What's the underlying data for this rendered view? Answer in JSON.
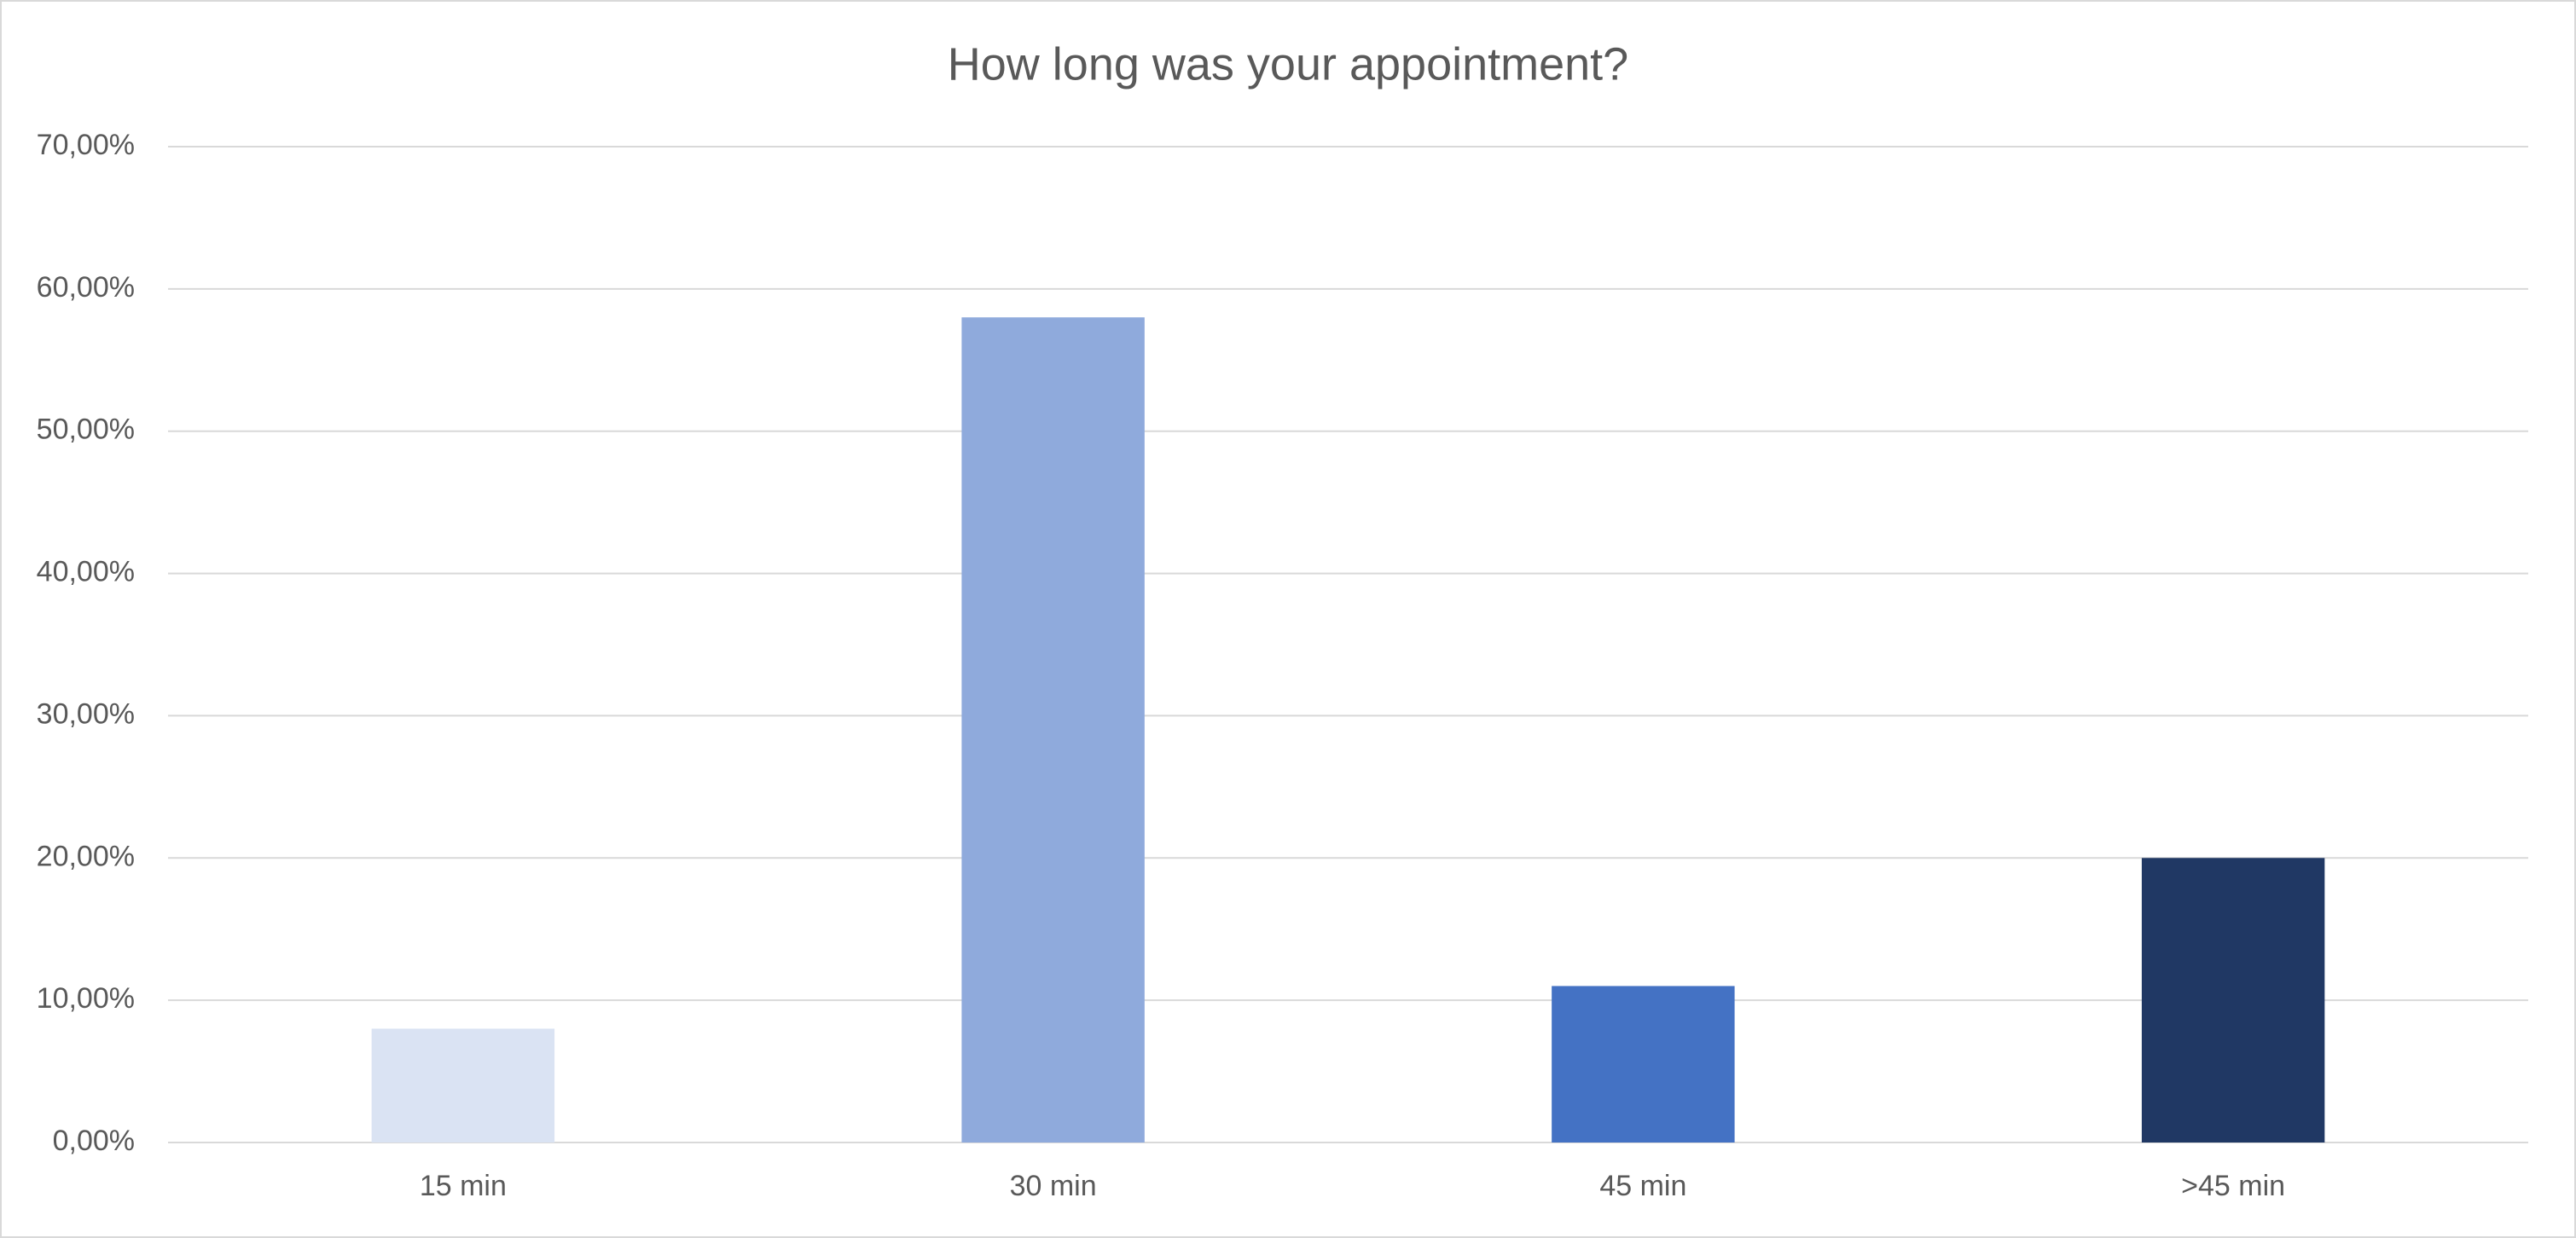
{
  "chart_data": {
    "type": "bar",
    "title": "How long was your appointment?",
    "categories": [
      "15 min",
      "30 min",
      "45 min",
      ">45 min"
    ],
    "values": [
      8,
      58,
      11,
      20
    ],
    "colors": [
      "#dae3f3",
      "#8faadc",
      "#4472c4",
      "#203864"
    ],
    "ylim": [
      0,
      70
    ],
    "yticks": [
      {
        "value": 0,
        "label": "0,00%"
      },
      {
        "value": 10,
        "label": "10,00%"
      },
      {
        "value": 20,
        "label": "20,00%"
      },
      {
        "value": 30,
        "label": "30,00%"
      },
      {
        "value": 40,
        "label": "40,00%"
      },
      {
        "value": 50,
        "label": "50,00%"
      },
      {
        "value": 60,
        "label": "60,00%"
      },
      {
        "value": 70,
        "label": "70,00%"
      }
    ],
    "grid": true
  }
}
